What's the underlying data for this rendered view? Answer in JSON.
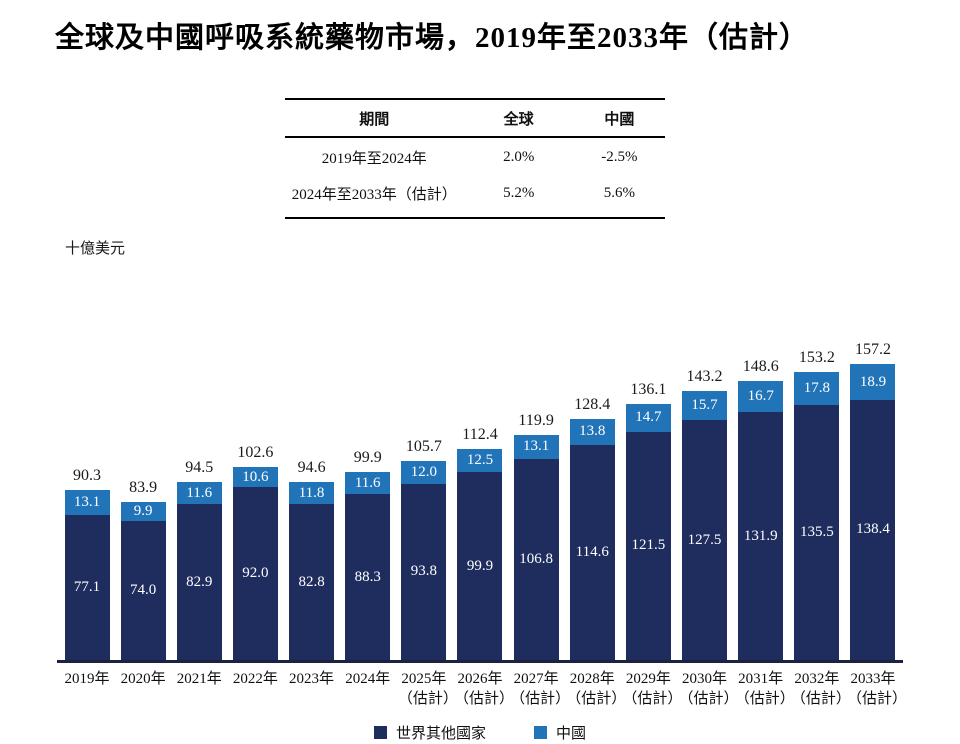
{
  "title": "全球及中國呼吸系統藥物市場，2019年至2033年（估計）",
  "cagr_table": {
    "headers": [
      "期間",
      "全球",
      "中國"
    ],
    "rows": [
      {
        "period": "2019年至2024年",
        "global": "2.0%",
        "china": "-2.5%"
      },
      {
        "period": "2024年至2033年（估計）",
        "global": "5.2%",
        "china": "5.6%"
      }
    ]
  },
  "chart_data": {
    "type": "bar",
    "stacked": true,
    "title": "全球及中國呼吸系統藥物市場，2019年至2033年（估計）",
    "unit_label": "十億美元",
    "ylabel": "十億美元",
    "xlabel": "",
    "ylim": [
      0,
      170
    ],
    "grid": false,
    "legend_position": "bottom",
    "categories": [
      {
        "label": "2019年",
        "sublabel": ""
      },
      {
        "label": "2020年",
        "sublabel": ""
      },
      {
        "label": "2021年",
        "sublabel": ""
      },
      {
        "label": "2022年",
        "sublabel": ""
      },
      {
        "label": "2023年",
        "sublabel": ""
      },
      {
        "label": "2024年",
        "sublabel": ""
      },
      {
        "label": "2025年",
        "sublabel": "（估計）"
      },
      {
        "label": "2026年",
        "sublabel": "（估計）"
      },
      {
        "label": "2027年",
        "sublabel": "（估計）"
      },
      {
        "label": "2028年",
        "sublabel": "（估計）"
      },
      {
        "label": "2029年",
        "sublabel": "（估計）"
      },
      {
        "label": "2030年",
        "sublabel": "（估計）"
      },
      {
        "label": "2031年",
        "sublabel": "（估計）"
      },
      {
        "label": "2032年",
        "sublabel": "（估計）"
      },
      {
        "label": "2033年",
        "sublabel": "（估計）"
      }
    ],
    "series": [
      {
        "name": "世界其他國家",
        "color": "#1f2c5e",
        "values": [
          77.1,
          74.0,
          82.9,
          92.0,
          82.8,
          88.3,
          93.8,
          99.9,
          106.8,
          114.6,
          121.5,
          127.5,
          131.9,
          135.5,
          138.4
        ]
      },
      {
        "name": "中國",
        "color": "#2274b9",
        "values": [
          13.1,
          9.9,
          11.6,
          10.6,
          11.8,
          11.6,
          12.0,
          12.5,
          13.1,
          13.8,
          14.7,
          15.7,
          16.7,
          17.8,
          18.9
        ]
      }
    ],
    "totals": [
      90.3,
      83.9,
      94.5,
      102.6,
      94.6,
      99.9,
      105.7,
      112.4,
      119.9,
      128.4,
      136.1,
      143.2,
      148.6,
      153.2,
      157.2
    ]
  }
}
